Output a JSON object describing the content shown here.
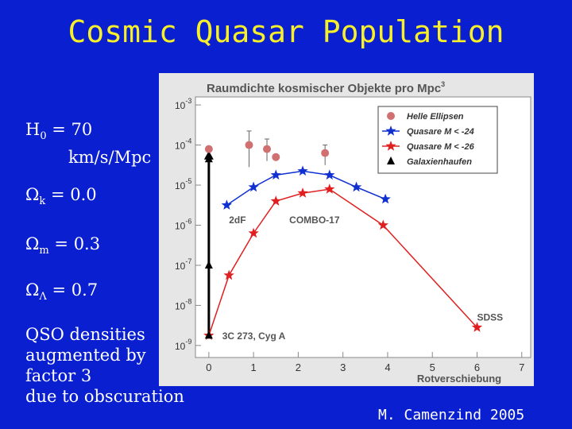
{
  "slide": {
    "title": "Cosmic Quasar Population",
    "author": "M. Camenzind 2005",
    "params": {
      "h0_symbol": "H",
      "h0_sub": "0",
      "h0_value": " = 70",
      "h0_unit": "km/s/Mpc",
      "omega_k_sub": "k",
      "omega_k_value": " = 0.0",
      "omega_m_sub": "m",
      "omega_m_value": " = 0.3",
      "omega_l_sub": "Λ",
      "omega_l_value": " = 0.7",
      "omega_symbol": "Ω"
    },
    "note": [
      "QSO densities",
      "augmented by",
      "factor 3",
      "due to obscuration"
    ]
  },
  "chart_data": {
    "type": "line",
    "title": "Raumdichte kosmischer Objekte pro Mpc",
    "title_sup": "3",
    "xlabel": "Rotverschiebung",
    "ylabel": "",
    "xlim": [
      -0.3,
      7.2
    ],
    "ylog": true,
    "ylim_exp": [
      -9.3,
      -2.8
    ],
    "xticks": [
      "0",
      "1",
      "2",
      "3",
      "4",
      "5",
      "6",
      "7"
    ],
    "yticks": [
      {
        "base": "10",
        "exp": "-3",
        "value": -3
      },
      {
        "base": "10",
        "exp": "-4",
        "value": -4
      },
      {
        "base": "10",
        "exp": "-5",
        "value": -5
      },
      {
        "base": "10",
        "exp": "-6",
        "value": -6
      },
      {
        "base": "10",
        "exp": "-7",
        "value": -7
      },
      {
        "base": "10",
        "exp": "-8",
        "value": -8
      },
      {
        "base": "10",
        "exp": "-9",
        "value": -9
      }
    ],
    "legend_position": "top-right",
    "series": [
      {
        "name": "Helle Ellipsen",
        "marker": "circle",
        "color": "#d07070",
        "line": false,
        "x": [
          0.0,
          0.9,
          1.3,
          1.5,
          2.6
        ],
        "y_log10": [
          -4.1,
          -4.0,
          -4.1,
          -4.3,
          -4.2
        ],
        "err_up": [
          0,
          0.35,
          0.25,
          0,
          0.2
        ],
        "err_down": [
          0,
          0.55,
          0.3,
          0,
          0.3
        ]
      },
      {
        "name": "Quasare M < -24",
        "marker": "star",
        "color": "#1030d0",
        "line": true,
        "x": [
          0.4,
          1.0,
          1.5,
          2.1,
          2.7,
          3.3,
          3.95
        ],
        "y_log10": [
          -5.5,
          -5.05,
          -4.75,
          -4.65,
          -4.75,
          -5.05,
          -5.35
        ]
      },
      {
        "name": "Quasare M < -26",
        "marker": "star",
        "color": "#e02020",
        "line": true,
        "x": [
          0.0,
          0.45,
          1.0,
          1.5,
          2.1,
          2.7,
          3.9,
          6.0
        ],
        "y_log10": [
          -8.75,
          -7.25,
          -6.2,
          -5.4,
          -5.2,
          -5.1,
          -6.0,
          -8.55
        ]
      },
      {
        "name": "Galaxienhaufen",
        "marker": "triangle",
        "color": "#000000",
        "line": false,
        "x": [
          0.0,
          0.0,
          0.0
        ],
        "y_log10": [
          -4.35,
          -7.0,
          -8.75
        ]
      }
    ],
    "vertical_arrow": {
      "x": 0.0,
      "from_log10": -8.75,
      "to_log10": -4.3
    },
    "annotations": [
      {
        "text": "2dF",
        "x": 0.45,
        "y_log10": -5.85
      },
      {
        "text": "COMBO-17",
        "x": 1.8,
        "y_log10": -5.85
      },
      {
        "text": "SDSS",
        "x": 6.0,
        "y_log10": -8.28
      },
      {
        "text": "3C 273, Cyg A",
        "x": 0.3,
        "y_log10": -8.75
      }
    ]
  }
}
